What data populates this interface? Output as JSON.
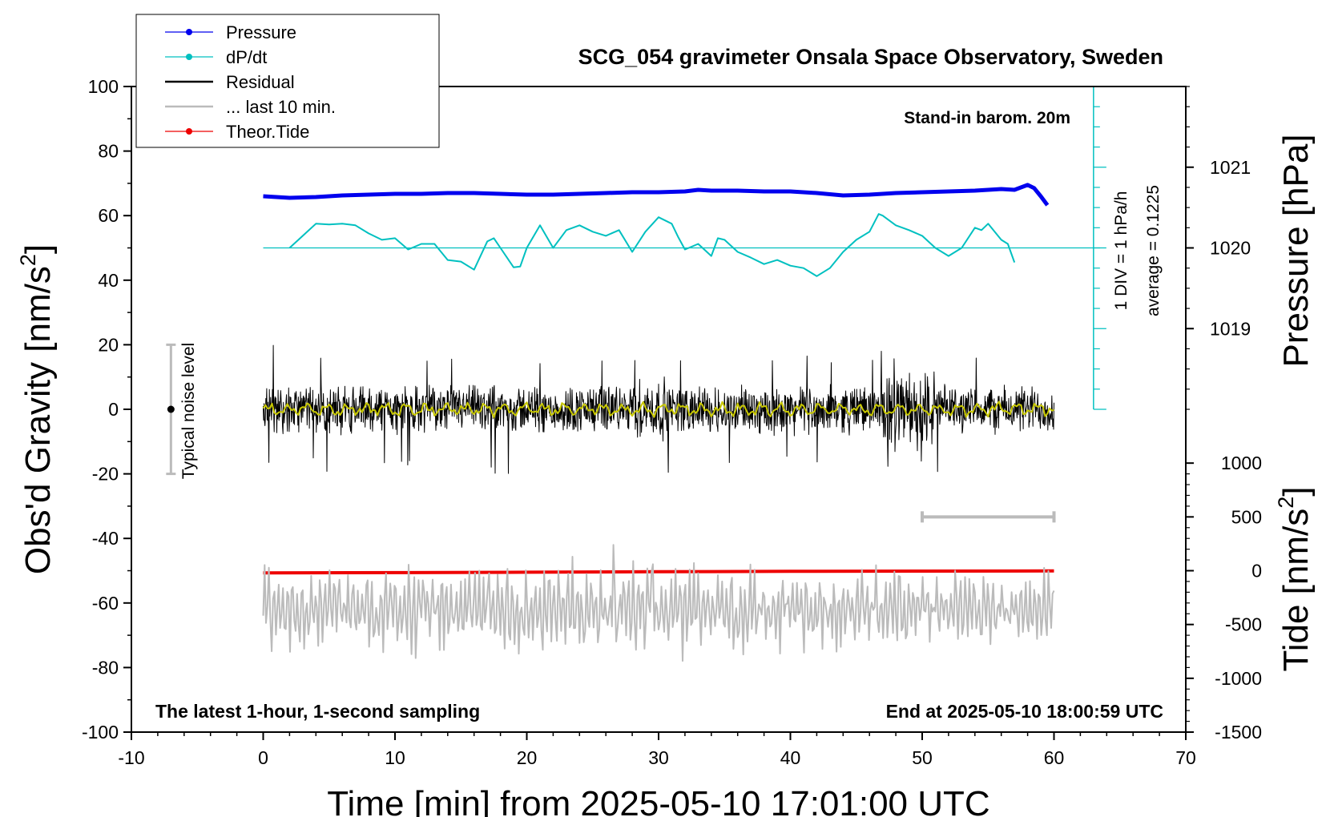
{
  "chart_data": {
    "type": "line",
    "title": "SCG_054 gravimeter Onsala Space Observatory, Sweden",
    "xlabel": "Time [min] from 2025-05-10 17:01:00 UTC",
    "ylabel_main": "Obs'd Gravity [nm/s",
    "ylabel_sup": "2",
    "ylabel_suffix": "]",
    "ylabel_pressure": "Pressure [hPa]",
    "ylabel_tide_main": "Tide [nm/s",
    "ylabel_tide_sup": "2",
    "ylabel_tide_suffix": "]",
    "xlim": [
      -10,
      70
    ],
    "ylim": [
      -100,
      100
    ],
    "pressure_lim": [
      1018.0,
      1022.0
    ],
    "tide_lim": [
      -1500,
      1500
    ],
    "x_ticks": [
      "-10",
      "0",
      "10",
      "20",
      "30",
      "40",
      "50",
      "60",
      "70"
    ],
    "y_ticks": [
      "100",
      "80",
      "60",
      "40",
      "20",
      "0",
      "-20",
      "-40",
      "-60",
      "-80",
      "-100"
    ],
    "pressure_ticks": [
      "1021",
      "1020",
      "1019"
    ],
    "tide_ticks": [
      "1000",
      "500",
      "0",
      "-500",
      "-1000",
      "-1500"
    ],
    "legend_position": "top-left",
    "series": [
      {
        "name": "Pressure",
        "color": "#0000ee",
        "axis": "pressure",
        "x": [
          0,
          2,
          4,
          6,
          8,
          10,
          12,
          14,
          16,
          18,
          20,
          22,
          24,
          26,
          28,
          30,
          32,
          33,
          34,
          36,
          38,
          40,
          42,
          44,
          46,
          48,
          50,
          52,
          54,
          56,
          57,
          58,
          58.5,
          59,
          59.5
        ],
        "values": [
          1020.64,
          1020.62,
          1020.63,
          1020.65,
          1020.66,
          1020.67,
          1020.67,
          1020.68,
          1020.68,
          1020.67,
          1020.66,
          1020.66,
          1020.67,
          1020.68,
          1020.69,
          1020.69,
          1020.7,
          1020.72,
          1020.71,
          1020.71,
          1020.7,
          1020.7,
          1020.68,
          1020.65,
          1020.66,
          1020.68,
          1020.69,
          1020.7,
          1020.71,
          1020.73,
          1020.72,
          1020.78,
          1020.74,
          1020.64,
          1020.53
        ]
      },
      {
        "name": "dP/dt",
        "color": "#00c0c0",
        "axis": "pressure",
        "x": [
          2,
          3,
          4,
          5,
          6,
          7,
          8,
          9,
          10,
          11,
          12,
          13,
          14,
          15,
          16,
          17,
          17.5,
          18,
          19,
          19.5,
          20,
          21,
          22,
          23,
          24,
          25,
          26,
          27,
          28,
          29,
          30,
          31,
          31.5,
          32,
          33,
          34,
          34.5,
          35,
          36,
          37,
          38,
          39,
          40,
          41,
          42,
          43,
          44,
          45,
          46,
          46.7,
          47,
          48,
          49,
          50,
          51,
          52,
          53,
          54,
          54.5,
          55,
          56,
          56.5,
          57
        ],
        "values": [
          1020.0,
          1020.15,
          1020.3,
          1020.29,
          1020.3,
          1020.28,
          1020.18,
          1020.1,
          1020.12,
          1019.98,
          1020.05,
          1020.05,
          1019.85,
          1019.83,
          1019.73,
          1020.08,
          1020.12,
          1020.0,
          1019.76,
          1019.77,
          1020.0,
          1020.28,
          1020.0,
          1020.22,
          1020.28,
          1020.2,
          1020.15,
          1020.22,
          1019.95,
          1020.2,
          1020.38,
          1020.3,
          1020.13,
          1019.98,
          1020.05,
          1019.9,
          1020.12,
          1020.1,
          1019.95,
          1019.88,
          1019.8,
          1019.85,
          1019.78,
          1019.75,
          1019.65,
          1019.75,
          1019.95,
          1020.1,
          1020.2,
          1020.42,
          1020.4,
          1020.28,
          1020.22,
          1020.15,
          1020.0,
          1019.9,
          1020.0,
          1020.25,
          1020.22,
          1020.3,
          1020.1,
          1020.05,
          1019.82
        ]
      },
      {
        "name": "Residual",
        "color": "#000000",
        "axis": "gravity",
        "x": [
          0,
          60
        ],
        "values": [
          0,
          0
        ]
      },
      {
        "name": "... last 10 min.",
        "color": "#bbbbbb",
        "axis": "gravity",
        "x": [
          50,
          60
        ],
        "values": [
          -33,
          -33
        ]
      },
      {
        "name": "Theor.Tide",
        "color": "#ee0000",
        "axis": "tide",
        "x": [
          0,
          10,
          20,
          30,
          40,
          50,
          60
        ],
        "values": [
          -20,
          -18,
          -14,
          -10,
          -6,
          -4,
          -2
        ]
      }
    ],
    "legend": [
      {
        "label": "Pressure",
        "color": "#0000ee",
        "marker": true
      },
      {
        "label": "dP/dt",
        "color": "#00c0c0",
        "marker": true
      },
      {
        "label": "Residual",
        "color": "#000000",
        "marker": false
      },
      {
        "label": "... last 10 min.",
        "color": "#bbbbbb",
        "marker": false
      },
      {
        "label": "Theor.Tide",
        "color": "#ee0000",
        "marker": true
      }
    ],
    "annotations": {
      "barometer": "Stand-in barom. 20m",
      "div_label": "1 DIV = 1 hPa/h",
      "average": "average = 0.1225",
      "noise": "Typical noise level",
      "noise_range": [
        -20,
        20
      ],
      "latest": "The latest 1-hour, 1-second sampling",
      "end": "End at 2025-05-10 18:00:59 UTC"
    },
    "colors": {
      "smoothed_residual": "#c8c800",
      "grey": "#bbbbbb"
    },
    "grid": false
  }
}
